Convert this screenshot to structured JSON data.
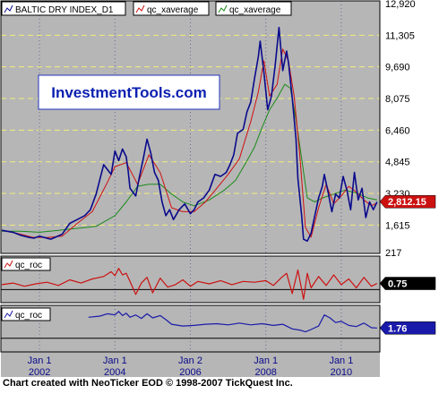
{
  "watermark": "InvestmentTools.com",
  "credit": "Chart created with NeoTicker EOD © 1998-2007 TickQuest Inc.",
  "colors": {
    "background": "#b6b6b6",
    "price": "#0a0a8c",
    "fast_average": "#d01010",
    "slow_average": "#1a8a1a",
    "roc_fast": "#cc1111",
    "roc_slow": "#1a1aaa",
    "last_price_marker": "#cc1111",
    "roc_fast_marker": "#000000",
    "roc_slow_marker": "#1a1aaa"
  },
  "chart_data": [
    {
      "type": "line",
      "panel": "main",
      "legend": [
        "BALTIC DRY INDEX_D1",
        "qc_xaverage",
        "qc_xaverage"
      ],
      "x_ticks": [
        {
          "label": "Jan 1",
          "year": "2002",
          "x": 2002.0
        },
        {
          "label": "Jan 1",
          "year": "2004",
          "x": 2004.0
        },
        {
          "label": "Jan 2",
          "year": "2006",
          "x": 2006.0
        },
        {
          "label": "Jan 1",
          "year": "2008",
          "x": 2008.0
        },
        {
          "label": "Jan 1",
          "year": "2010",
          "x": 2010.0
        }
      ],
      "xlim": [
        2001.0,
        2011.0
      ],
      "ylim": [
        217,
        12920
      ],
      "y_ticks": [
        "12,920",
        "11,305",
        "9,690",
        "8,075",
        "6,460",
        "4,845",
        "3,230",
        "1,615",
        "217"
      ],
      "y_tick_values": [
        12920,
        11305,
        9690,
        8075,
        6460,
        4845,
        3230,
        1615,
        217
      ],
      "last_value_label": "2,812.15",
      "last_value": 2812.15,
      "grid": true,
      "legend_position": "top-left",
      "series": [
        {
          "name": "BALTIC DRY INDEX_D1",
          "color": "#0a0a8c",
          "x": [
            2001.0,
            2001.3,
            2001.5,
            2001.7,
            2001.85,
            2002.0,
            2002.3,
            2002.6,
            2002.8,
            2003.0,
            2003.2,
            2003.35,
            2003.5,
            2003.7,
            2003.9,
            2004.0,
            2004.1,
            2004.2,
            2004.3,
            2004.35,
            2004.4,
            2004.55,
            2004.65,
            2004.75,
            2004.85,
            2004.95,
            2005.05,
            2005.15,
            2005.25,
            2005.35,
            2005.45,
            2005.55,
            2005.7,
            2005.85,
            2006.0,
            2006.1,
            2006.2,
            2006.35,
            2006.5,
            2006.65,
            2006.8,
            2006.95,
            2007.05,
            2007.15,
            2007.25,
            2007.4,
            2007.5,
            2007.6,
            2007.7,
            2007.8,
            2007.85,
            2007.95,
            2008.05,
            2008.15,
            2008.25,
            2008.35,
            2008.45,
            2008.55,
            2008.6,
            2008.7,
            2008.8,
            2008.85,
            2008.95,
            2009.0,
            2009.1,
            2009.2,
            2009.3,
            2009.4,
            2009.5,
            2009.55,
            2009.65,
            2009.75,
            2009.85,
            2009.95,
            2010.05,
            2010.15,
            2010.25,
            2010.35,
            2010.45,
            2010.55,
            2010.65,
            2010.75,
            2010.85,
            2010.95
          ],
          "y": [
            1350,
            1250,
            1100,
            1000,
            950,
            1050,
            900,
            1150,
            1700,
            1900,
            2100,
            2400,
            3200,
            4700,
            4200,
            5400,
            4900,
            5500,
            5100,
            4400,
            3500,
            3100,
            4100,
            5000,
            6000,
            5300,
            4300,
            3900,
            2800,
            2100,
            2400,
            1900,
            2400,
            2700,
            2200,
            2400,
            2800,
            3000,
            3400,
            4200,
            4100,
            4300,
            4700,
            5200,
            6300,
            6500,
            7400,
            7900,
            9100,
            10200,
            11000,
            9400,
            7500,
            8200,
            9800,
            11700,
            9500,
            10500,
            9900,
            8100,
            6000,
            4000,
            2100,
            900,
            800,
            1200,
            2100,
            3000,
            3600,
            4200,
            3300,
            2300,
            3200,
            3000,
            4100,
            3400,
            2400,
            4300,
            2900,
            3500,
            2000,
            2800,
            2400,
            2800
          ]
        },
        {
          "name": "qc_xaverage",
          "color": "#d01010",
          "x": [
            2001.0,
            2001.4,
            2001.8,
            2002.2,
            2002.6,
            2003.0,
            2003.4,
            2003.8,
            2004.0,
            2004.3,
            2004.6,
            2004.9,
            2005.2,
            2005.5,
            2005.8,
            2006.1,
            2006.4,
            2006.7,
            2007.0,
            2007.3,
            2007.6,
            2007.8,
            2007.95,
            2008.1,
            2008.3,
            2008.45,
            2008.6,
            2008.75,
            2008.9,
            2009.05,
            2009.2,
            2009.4,
            2009.6,
            2009.8,
            2010.0,
            2010.2,
            2010.4,
            2010.6,
            2010.8,
            2010.95
          ],
          "y": [
            1350,
            1200,
            1000,
            980,
            1050,
            1700,
            2300,
            3800,
            4600,
            4800,
            3700,
            5200,
            4300,
            2500,
            2300,
            2300,
            2800,
            3500,
            4200,
            5000,
            6900,
            8400,
            10000,
            8200,
            8800,
            10600,
            10000,
            8200,
            5200,
            1500,
            1000,
            2500,
            3700,
            2700,
            3100,
            3600,
            3300,
            2900,
            2600,
            2750
          ]
        },
        {
          "name": "qc_xaverage",
          "color": "#1a8a1a",
          "x": [
            2001.0,
            2001.5,
            2002.0,
            2002.5,
            2003.0,
            2003.5,
            2004.0,
            2004.3,
            2004.6,
            2004.9,
            2005.2,
            2005.5,
            2005.8,
            2006.1,
            2006.5,
            2006.9,
            2007.2,
            2007.5,
            2007.7,
            2007.9,
            2008.1,
            2008.3,
            2008.5,
            2008.65,
            2008.8,
            2008.95,
            2009.1,
            2009.3,
            2009.5,
            2009.8,
            2010.1,
            2010.4,
            2010.7,
            2010.95
          ],
          "y": [
            1300,
            1300,
            1250,
            1350,
            1450,
            1550,
            2100,
            2800,
            3600,
            3700,
            3700,
            3200,
            2800,
            2600,
            2900,
            3400,
            3900,
            4900,
            5600,
            6600,
            7500,
            8100,
            8800,
            8600,
            7000,
            5000,
            3000,
            2800,
            3000,
            3200,
            3400,
            3250,
            3000,
            2900
          ]
        }
      ]
    },
    {
      "type": "line",
      "panel": "roc1",
      "legend": [
        "qc_roc"
      ],
      "xlim": [
        2001.0,
        2011.0
      ],
      "ylim": [
        -1.5,
        4.0
      ],
      "last_value_label": "0.75",
      "last_value": 0.75,
      "series": [
        {
          "name": "qc_roc",
          "color": "#cc1111",
          "x": [
            2001.0,
            2001.3,
            2001.6,
            2001.9,
            2002.2,
            2002.5,
            2002.8,
            2003.1,
            2003.4,
            2003.7,
            2003.9,
            2004.0,
            2004.1,
            2004.2,
            2004.3,
            2004.4,
            2004.55,
            2004.7,
            2004.85,
            2005.0,
            2005.2,
            2005.4,
            2005.6,
            2005.8,
            2006.0,
            2006.2,
            2006.5,
            2006.8,
            2007.1,
            2007.4,
            2007.7,
            2008.0,
            2008.2,
            2008.4,
            2008.55,
            2008.7,
            2008.85,
            2009.0,
            2009.1,
            2009.2,
            2009.4,
            2009.6,
            2009.8,
            2010.0,
            2010.2,
            2010.4,
            2010.6,
            2010.8,
            2010.95
          ],
          "y": [
            0.6,
            0.8,
            0.4,
            0.7,
            0.9,
            0.5,
            1.2,
            0.8,
            1.3,
            1.6,
            2.2,
            1.7,
            2.6,
            1.8,
            2.0,
            1.0,
            -0.6,
            0.8,
            1.5,
            -0.4,
            1.4,
            0.3,
            0.6,
            1.2,
            0.4,
            1.0,
            0.7,
            1.1,
            0.6,
            1.0,
            0.9,
            1.1,
            0.5,
            1.4,
            2.0,
            -0.5,
            2.4,
            -1.2,
            2.0,
            0.2,
            1.6,
            0.5,
            1.8,
            0.6,
            1.3,
            0.2,
            1.5,
            0.4,
            0.75
          ]
        }
      ]
    },
    {
      "type": "line",
      "panel": "roc2",
      "legend": [
        "qc_roc"
      ],
      "xlim": [
        2001.0,
        2011.0
      ],
      "ylim": [
        -2.2,
        5.5
      ],
      "last_value_label": "1.76",
      "last_value": 1.76,
      "series": [
        {
          "name": "qc_roc",
          "color": "#1a1aaa",
          "x": [
            2003.3,
            2003.6,
            2003.8,
            2004.0,
            2004.1,
            2004.2,
            2004.3,
            2004.4,
            2004.55,
            2004.7,
            2004.85,
            2005.0,
            2005.2,
            2005.35,
            2005.5,
            2005.8,
            2006.1,
            2006.4,
            2006.7,
            2007.0,
            2007.3,
            2007.6,
            2007.9,
            2008.2,
            2008.45,
            2008.7,
            2008.9,
            2009.05,
            2009.2,
            2009.4,
            2009.55,
            2009.7,
            2009.85,
            2010.0,
            2010.2,
            2010.4,
            2010.6,
            2010.8,
            2010.95
          ],
          "y": [
            3.6,
            3.8,
            4.2,
            4.0,
            4.6,
            3.9,
            4.3,
            3.6,
            4.0,
            3.4,
            4.2,
            3.5,
            3.9,
            3.2,
            2.4,
            2.1,
            2.2,
            2.4,
            2.5,
            2.3,
            2.6,
            2.3,
            2.5,
            2.2,
            2.4,
            1.6,
            1.4,
            1.1,
            1.5,
            2.1,
            4.0,
            3.5,
            2.7,
            2.9,
            2.2,
            2.0,
            2.6,
            1.8,
            1.76
          ]
        }
      ]
    }
  ]
}
